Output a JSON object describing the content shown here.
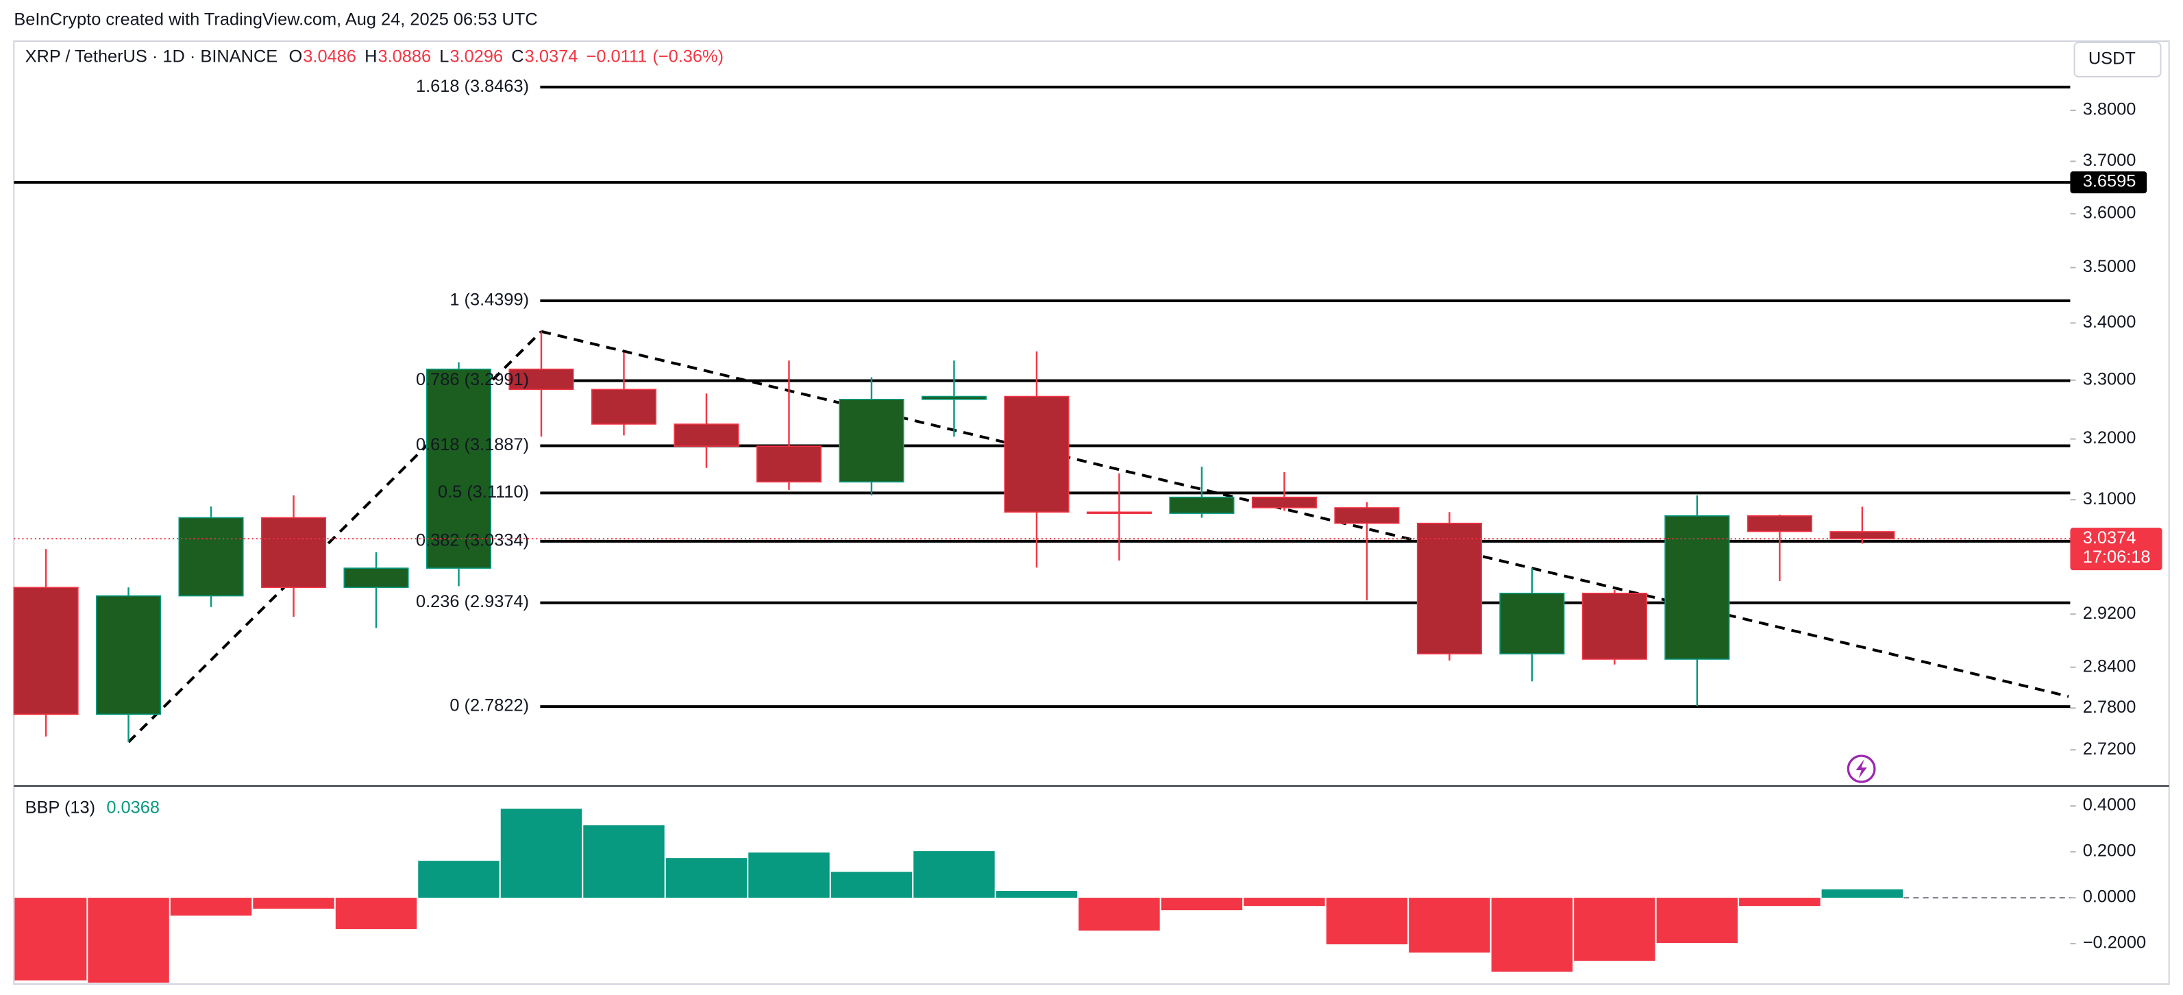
{
  "header": "BeInCrypto created with TradingView.com, Aug 24, 2025 06:53 UTC",
  "chart_data": [
    {
      "type": "candlestick",
      "title": "XRP / TetherUS · 1D · BINANCE",
      "legend": [
        {
          "label": "O",
          "value": 3.0486
        },
        {
          "label": "H",
          "value": 3.0886
        },
        {
          "label": "L",
          "value": 3.0296
        },
        {
          "label": "C",
          "value": 3.0374
        }
      ],
      "change": {
        "value": -0.0111,
        "label": "−0.0111"
      },
      "change_percent": {
        "value": -0.36,
        "label": "(−0.36%)"
      },
      "currency": "USDT",
      "open": [
        2.961,
        2.771,
        2.948,
        3.071,
        2.961,
        2.991,
        3.319,
        3.284,
        3.225,
        3.188,
        3.129,
        3.267,
        3.272,
        3.08,
        3.078,
        3.104,
        3.087,
        3.062,
        2.86,
        2.952,
        2.852,
        3.074,
        3.0486
      ],
      "high": [
        3.021,
        2.961,
        3.089,
        3.107,
        3.016,
        3.331,
        3.385,
        3.348,
        3.277,
        3.334,
        3.305,
        3.334,
        3.35,
        3.143,
        3.154,
        3.145,
        3.096,
        3.08,
        2.991,
        2.957,
        3.107,
        3.076,
        3.0886
      ],
      "low": [
        2.739,
        2.731,
        2.931,
        2.916,
        2.899,
        2.963,
        3.204,
        3.206,
        3.152,
        3.116,
        3.107,
        3.204,
        2.992,
        3.003,
        3.071,
        3.082,
        2.941,
        2.85,
        2.819,
        2.844,
        2.783,
        2.971,
        3.0296
      ],
      "close": [
        2.771,
        2.948,
        3.071,
        2.961,
        2.991,
        3.319,
        3.284,
        3.225,
        3.188,
        3.129,
        3.267,
        3.272,
        3.08,
        3.078,
        3.104,
        3.087,
        3.062,
        2.86,
        2.952,
        2.852,
        3.074,
        3.049,
        3.0374
      ],
      "up_color": "#1b5e20",
      "down_color": "#b22833",
      "up_wick_color": "#089981",
      "down_wick_color": "#f23645",
      "log_scale": true,
      "ylim": [
        2.67,
        3.94
      ],
      "yticks": [
        {
          "value": 2.72,
          "label": "2.7200"
        },
        {
          "value": 2.78,
          "label": "2.7800"
        },
        {
          "value": 2.84,
          "label": "2.8400"
        },
        {
          "value": 2.92,
          "label": "2.9200"
        },
        {
          "value": 3.1,
          "label": "3.1000"
        },
        {
          "value": 3.2,
          "label": "3.2000"
        },
        {
          "value": 3.3,
          "label": "3.3000"
        },
        {
          "value": 3.4,
          "label": "3.4000"
        },
        {
          "value": 3.5,
          "label": "3.5000"
        },
        {
          "value": 3.6,
          "label": "3.6000"
        },
        {
          "value": 3.7,
          "label": "3.7000"
        },
        {
          "value": 3.8,
          "label": "3.8000"
        }
      ],
      "fib_levels": [
        {
          "value": 3.8463,
          "label": "1.618 (3.8463)"
        },
        {
          "value": 3.4399,
          "label": "1 (3.4399)"
        },
        {
          "value": 3.2991,
          "label": "0.786 (3.2991)"
        },
        {
          "value": 3.1887,
          "label": "0.618 (3.1887)"
        },
        {
          "value": 3.111,
          "label": "0.5 (3.1110)"
        },
        {
          "value": 3.0334,
          "label": "0.382 (3.0334)"
        },
        {
          "value": 2.9374,
          "label": "0.236 (2.9374)"
        },
        {
          "value": 2.7822,
          "label": "0 (2.7822)"
        }
      ],
      "fib_color": "#000000",
      "price_line": 3.6595,
      "countdown": "17:06:18",
      "trend_lines": [
        {
          "x": [
            1,
            6
          ],
          "y": [
            2.731,
            3.385
          ]
        },
        {
          "x": [
            6,
            24.5
          ],
          "y": [
            3.385,
            2.797
          ]
        }
      ]
    },
    {
      "type": "bar",
      "title": "BBP (13)",
      "values": [
        -0.36,
        -0.37,
        -0.078,
        -0.048,
        -0.137,
        0.161,
        0.388,
        0.316,
        0.173,
        0.197,
        0.113,
        0.203,
        0.03,
        -0.143,
        -0.054,
        -0.036,
        -0.203,
        -0.239,
        -0.322,
        -0.275,
        -0.197,
        -0.036,
        0.0368
      ],
      "positive_color": "#089981",
      "negative_color": "#f23645",
      "ylim": [
        -0.376,
        0.478
      ],
      "yticks": [
        {
          "value": 0.4,
          "label": "0.4000"
        },
        {
          "value": 0.2,
          "label": "0.2000"
        },
        {
          "value": 0,
          "label": "0.0000"
        },
        {
          "value": -0.2,
          "label": "−0.2000"
        }
      ]
    }
  ]
}
